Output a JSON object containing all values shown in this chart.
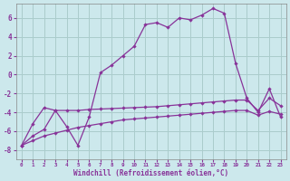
{
  "xlabel": "Windchill (Refroidissement éolien,°C)",
  "background_color": "#cce8ec",
  "grid_color": "#aacccc",
  "line_color": "#883399",
  "x_values": [
    0,
    1,
    2,
    3,
    4,
    5,
    6,
    7,
    8,
    9,
    10,
    11,
    12,
    13,
    14,
    15,
    16,
    17,
    18,
    19,
    20,
    21,
    22,
    23
  ],
  "series1": [
    -7.5,
    -5.2,
    -3.5,
    -3.8,
    -5.5,
    -7.5,
    -4.5,
    0.2,
    1.0,
    2.0,
    3.0,
    5.3,
    5.5,
    5.0,
    6.0,
    5.8,
    6.3,
    7.0,
    6.5,
    1.2,
    -2.5,
    -4.0,
    -1.5,
    -4.5
  ],
  "series2": [
    -7.5,
    -6.5,
    -5.8,
    -3.8,
    -3.8,
    -3.8,
    -3.7,
    -3.65,
    -3.6,
    -3.55,
    -3.5,
    -3.45,
    -3.4,
    -3.3,
    -3.2,
    -3.1,
    -3.0,
    -2.9,
    -2.8,
    -2.7,
    -2.7,
    -3.8,
    -2.5,
    -3.3
  ],
  "series3": [
    -7.5,
    -7.0,
    -6.5,
    -6.2,
    -5.9,
    -5.6,
    -5.4,
    -5.2,
    -5.0,
    -4.8,
    -4.7,
    -4.6,
    -4.5,
    -4.4,
    -4.3,
    -4.2,
    -4.1,
    -4.0,
    -3.9,
    -3.8,
    -3.8,
    -4.3,
    -3.9,
    -4.2
  ],
  "ylim": [
    -9,
    7.5
  ],
  "yticks": [
    -8,
    -6,
    -4,
    -2,
    0,
    2,
    4,
    6
  ],
  "xlim": [
    -0.5,
    23.5
  ],
  "xticks": [
    0,
    1,
    2,
    3,
    4,
    5,
    6,
    7,
    8,
    9,
    10,
    11,
    12,
    13,
    14,
    15,
    16,
    17,
    18,
    19,
    20,
    21,
    22,
    23
  ]
}
